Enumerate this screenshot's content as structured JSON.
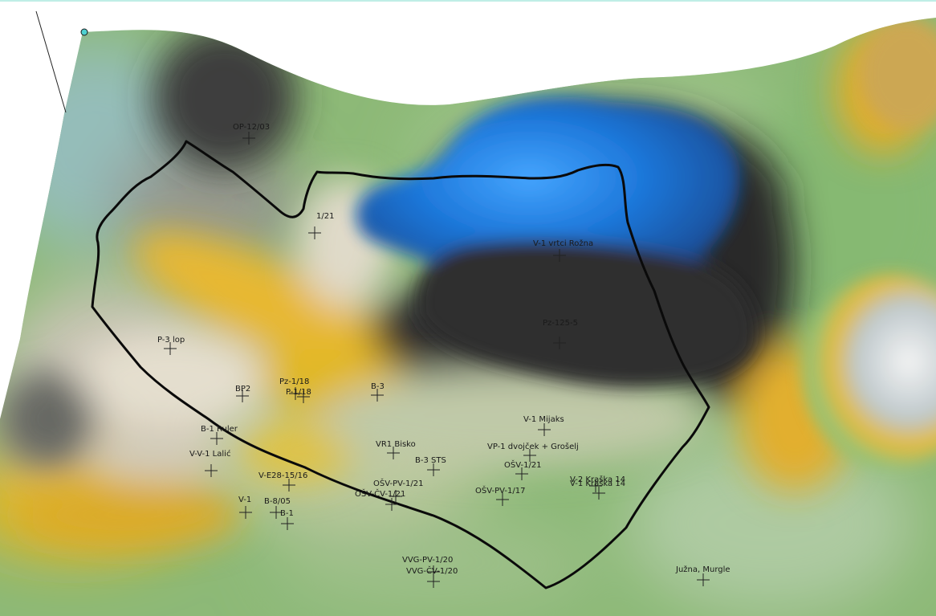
{
  "viewer": {
    "surface_colors": {
      "low": "#0a66d6",
      "mid_high": "#e9e4d2",
      "dark": "#2a2a2a",
      "gold": "#e1b21c",
      "green": "#7fb36e",
      "teal": "#8fb9b6",
      "boundary": "#000000",
      "handle": "#22c6c6"
    }
  },
  "wells": [
    {
      "id": "w1",
      "label": "OP-12/03"
    },
    {
      "id": "w2",
      "label": "1/21"
    },
    {
      "id": "w3",
      "label": "V-1 vrtci Rožna"
    },
    {
      "id": "w4",
      "label": "Pz-125-5"
    },
    {
      "id": "w5",
      "label": "P-3 lop"
    },
    {
      "id": "w6",
      "label": "BP2"
    },
    {
      "id": "w7",
      "label": "Pz-1/18"
    },
    {
      "id": "w8",
      "label": "P-1/18"
    },
    {
      "id": "w9",
      "label": "B-3"
    },
    {
      "id": "w10",
      "label": "V-1 Mijaks"
    },
    {
      "id": "w11",
      "label": "B-1 Ruler"
    },
    {
      "id": "w12",
      "label": "VP-1 dvojček + Grošelj"
    },
    {
      "id": "w13",
      "label": "V-V-1 Lalić"
    },
    {
      "id": "w14",
      "label": "VR1 Bisko"
    },
    {
      "id": "w15",
      "label": "B-3 STS"
    },
    {
      "id": "w16",
      "label": "OŠV-1/21"
    },
    {
      "id": "w17",
      "label": "V-2 Kraška 14"
    },
    {
      "id": "w18",
      "label": "V-1 Kraška 14"
    },
    {
      "id": "w19",
      "label": "OŠV-PV-1/21"
    },
    {
      "id": "w20",
      "label": "OŠV-ČV-1/21"
    },
    {
      "id": "w21",
      "label": "OŠV-PV-1/17"
    },
    {
      "id": "w22",
      "label": "V-E28-15/16"
    },
    {
      "id": "w23",
      "label": "V-1"
    },
    {
      "id": "w24",
      "label": "B-8/05"
    },
    {
      "id": "w25",
      "label": "B-1"
    },
    {
      "id": "w26",
      "label": "VVG-PV-1/20"
    },
    {
      "id": "w27",
      "label": "VVG-ČV-1/20"
    },
    {
      "id": "w28",
      "label": "Južna, Murgle"
    }
  ]
}
